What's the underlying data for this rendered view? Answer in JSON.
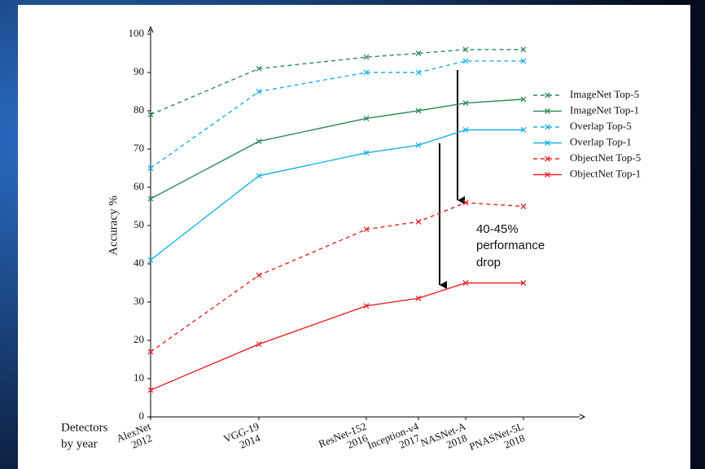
{
  "chart_data": {
    "type": "line",
    "y_label": "Accuracy %",
    "x_label": [
      "Detectors",
      "by year"
    ],
    "categories": [
      "AlexNet",
      "VGG-19",
      "ResNet-152",
      "Inception-v4",
      "NASNet-A",
      "PNASNet-5L"
    ],
    "category_years": [
      "2012",
      "2014",
      "2016",
      "2017",
      "2018",
      "2018"
    ],
    "ylim": [
      0,
      100
    ],
    "yticks": [
      0,
      10,
      20,
      30,
      40,
      50,
      60,
      70,
      80,
      90,
      100
    ],
    "legend": "right",
    "series": [
      {
        "name": "ImageNet Top-5",
        "color": "#2e8b57",
        "dashed": true,
        "values": [
          79,
          91,
          94,
          95,
          96,
          96
        ]
      },
      {
        "name": "ImageNet Top-1",
        "color": "#2e8b57",
        "dashed": false,
        "values": [
          57,
          72,
          78,
          80,
          82,
          83
        ]
      },
      {
        "name": "Overlap Top-5",
        "color": "#1ab0e8",
        "dashed": true,
        "values": [
          65,
          85,
          90,
          90,
          93,
          93
        ]
      },
      {
        "name": "Overlap Top-1",
        "color": "#1ab0e8",
        "dashed": false,
        "values": [
          41,
          63,
          69,
          71,
          75,
          75
        ]
      },
      {
        "name": "ObjectNet Top-5",
        "color": "#e8242a",
        "dashed": true,
        "values": [
          17,
          37,
          49,
          51,
          56,
          55
        ]
      },
      {
        "name": "ObjectNet Top-1",
        "color": "#e8242a",
        "dashed": false,
        "values": [
          7,
          19,
          29,
          31,
          35,
          35
        ]
      }
    ],
    "annotation": [
      "40-45%",
      "performance",
      "drop"
    ]
  }
}
